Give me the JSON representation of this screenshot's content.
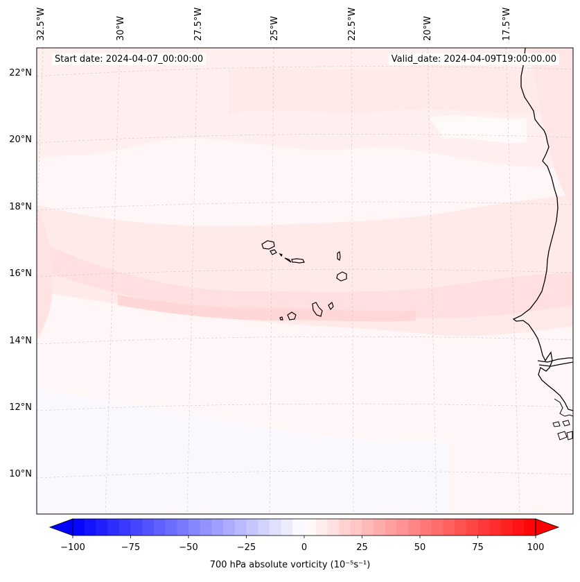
{
  "map": {
    "start_date": "Start date: 2024-04-07_00:00:00",
    "valid_date": "Valid_date: 2024-04-09T19:00:00.00",
    "lon_labels": [
      "32.5°W",
      "30°W",
      "27.5°W",
      "25°W",
      "22.5°W",
      "20°W",
      "17.5°W"
    ],
    "lat_labels": [
      "22°N",
      "20°N",
      "18°N",
      "16°N",
      "14°N",
      "12°N",
      "10°N"
    ],
    "extent": {
      "lon_min": -33,
      "lon_max": -16.5,
      "lat_min": 8.8,
      "lat_max": 22.8
    },
    "field": "700 hPa absolute vorticity",
    "colors": {
      "negative_max": "#0000ff",
      "positive_max": "#ff0000",
      "neutral": "#ffffff",
      "coastline": "#000000"
    }
  },
  "colorbar": {
    "label": "700 hPa absolute vorticity (10⁻⁵s⁻¹)",
    "ticks": [
      "−100",
      "−75",
      "−50",
      "−25",
      "0",
      "25",
      "50",
      "75",
      "100"
    ],
    "range": [
      -100,
      100
    ],
    "extend": "both"
  }
}
